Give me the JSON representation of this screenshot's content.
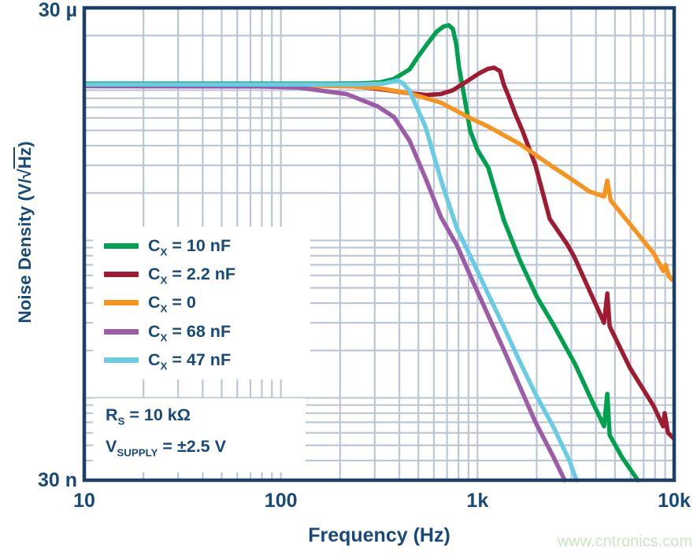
{
  "figure": {
    "watermark": "www.cntronics.com",
    "colors": {
      "text": "#17497A",
      "frame": "#1B3F66",
      "grid": "#BBC7D6",
      "watermark": "#CBE7C4",
      "background": "#FFFFFF"
    }
  },
  "axes": {
    "x": {
      "title": "Frequency (Hz)",
      "ticks": [
        "10",
        "100",
        "1k",
        "10k"
      ],
      "tick_top_value": "30 µ",
      "tick_bottom_value": "30 n"
    },
    "y": {
      "title_prefix": "Noise Density (V/",
      "title_sqrt": "√",
      "title_overline": "Hz",
      "title_suffix": ")",
      "tick_top": "30 µ",
      "tick_bottom": "30 n"
    }
  },
  "legend": {
    "items": [
      {
        "main": "C",
        "sub": "X",
        "rest": " = 10 nF"
      },
      {
        "main": "C",
        "sub": "X",
        "rest": " = 2.2 nF"
      },
      {
        "main": "C",
        "sub": "X",
        "rest": " = 0"
      },
      {
        "main": "C",
        "sub": "X",
        "rest": " = 68 nF"
      },
      {
        "main": "C",
        "sub": "X",
        "rest": " = 47 nF"
      }
    ]
  },
  "annotation": {
    "lines": [
      {
        "main": "R",
        "sub": "S",
        "rest": " = 10 kΩ"
      },
      {
        "main": "V",
        "sub": "SUPPLY",
        "rest": " = ±2.5 V"
      }
    ]
  },
  "chart_data": {
    "type": "line",
    "xscale": "log",
    "yscale": "log",
    "xlabel": "Frequency (Hz)",
    "ylabel": "Noise Density (V/√Hz)",
    "xlim": [
      10,
      10000
    ],
    "ylim": [
      3e-08,
      3e-05
    ],
    "x_ticks": [
      10,
      100,
      1000,
      10000
    ],
    "y_tick_labels": [
      "30 n",
      "30 µ"
    ],
    "grid": true,
    "legend_position": "middle-left",
    "flat_noise_level": 9.8e-06,
    "series": [
      {
        "name": "Cx = 10 nF",
        "color": "#00A14E",
        "points": [
          [
            10,
            9.9e-06
          ],
          [
            100,
            9.9e-06
          ],
          [
            180,
            9.9e-06
          ],
          [
            260,
            9.95e-06
          ],
          [
            320,
            1.01e-05
          ],
          [
            375,
            1.06e-05
          ],
          [
            451,
            1.22e-05
          ],
          [
            494,
            1.45e-05
          ],
          [
            560,
            1.8e-05
          ],
          [
            620,
            2.12e-05
          ],
          [
            670,
            2.28e-05
          ],
          [
            714,
            2.33e-05
          ],
          [
            750,
            2.2e-05
          ],
          [
            780,
            1.75e-05
          ],
          [
            805,
            1.26e-05
          ],
          [
            859,
            8e-06
          ],
          [
            917,
            5e-06
          ],
          [
            1000,
            3.75e-06
          ],
          [
            1133,
            2.9e-06
          ],
          [
            1363,
            1.34e-06
          ],
          [
            1640,
            7.5e-07
          ],
          [
            2000,
            4.4e-07
          ],
          [
            2436,
            2.9e-07
          ],
          [
            3125,
            1.65e-07
          ],
          [
            3830,
            9.5e-08
          ],
          [
            4400,
            6.6e-08
          ],
          [
            4570,
            1.06e-07
          ],
          [
            4700,
            5.8e-08
          ],
          [
            5430,
            4.2e-08
          ],
          [
            6530,
            3e-08
          ]
        ]
      },
      {
        "name": "Cx = 2.2 nF",
        "color": "#9E1B32",
        "points": [
          [
            10,
            9.7e-06
          ],
          [
            150,
            9.65e-06
          ],
          [
            250,
            9.5e-06
          ],
          [
            350,
            9e-06
          ],
          [
            451,
            8.6e-06
          ],
          [
            550,
            8.4e-06
          ],
          [
            650,
            8.5e-06
          ],
          [
            750,
            9e-06
          ],
          [
            857,
            1e-05
          ],
          [
            1030,
            1.16e-05
          ],
          [
            1130,
            1.23e-05
          ],
          [
            1215,
            1.25e-05
          ],
          [
            1300,
            1.19e-05
          ],
          [
            1363,
            9.7e-06
          ],
          [
            1430,
            8.4e-06
          ],
          [
            1560,
            6.3e-06
          ],
          [
            1690,
            5e-06
          ],
          [
            1970,
            3e-06
          ],
          [
            2330,
            1.37e-06
          ],
          [
            2850,
            9.5e-07
          ],
          [
            3100,
            7.9e-07
          ],
          [
            3770,
            4.6e-07
          ],
          [
            4400,
            3e-07
          ],
          [
            4570,
            4.6e-07
          ],
          [
            4700,
            2.85e-07
          ],
          [
            5960,
            1.55e-07
          ],
          [
            7850,
            8.9e-08
          ],
          [
            8790,
            6.6e-08
          ],
          [
            8950,
            8e-08
          ],
          [
            9300,
            6e-08
          ],
          [
            10000,
            5.5e-08
          ]
        ]
      },
      {
        "name": "Cx = 0",
        "color": "#F7941E",
        "points": [
          [
            10,
            9.65e-06
          ],
          [
            150,
            9.6e-06
          ],
          [
            216,
            9.55e-06
          ],
          [
            310,
            9.3e-06
          ],
          [
            451,
            8.6e-06
          ],
          [
            651,
            7.5e-06
          ],
          [
            940,
            5.9e-06
          ],
          [
            1130,
            5.3e-06
          ],
          [
            1640,
            4.1e-06
          ],
          [
            2350,
            3e-06
          ],
          [
            3000,
            2.45e-06
          ],
          [
            3700,
            2.05e-06
          ],
          [
            4400,
            1.9e-06
          ],
          [
            4570,
            2.4e-06
          ],
          [
            4750,
            1.8e-06
          ],
          [
            5960,
            1.27e-06
          ],
          [
            7850,
            8.3e-07
          ],
          [
            8800,
            6.4e-07
          ],
          [
            9050,
            7e-07
          ],
          [
            9400,
            5.9e-07
          ],
          [
            10000,
            5.5e-07
          ]
        ]
      },
      {
        "name": "Cx = 68 nF",
        "color": "#9C5CA8",
        "points": [
          [
            10,
            9.55e-06
          ],
          [
            80,
            9.5e-06
          ],
          [
            124,
            9.35e-06
          ],
          [
            216,
            8.5e-06
          ],
          [
            311,
            7.1e-06
          ],
          [
            375,
            6.1e-06
          ],
          [
            451,
            4.3e-06
          ],
          [
            543,
            2.5e-06
          ],
          [
            653,
            1.4e-06
          ],
          [
            786,
            9.3e-07
          ],
          [
            946,
            5.5e-07
          ],
          [
            1139,
            3.3e-07
          ],
          [
            1365,
            2e-07
          ],
          [
            1640,
            1.18e-07
          ],
          [
            1970,
            7e-08
          ],
          [
            2436,
            4.2e-08
          ],
          [
            2775,
            3e-08
          ]
        ]
      },
      {
        "name": "Cx = 47 nF",
        "color": "#68CDE4",
        "points": [
          [
            10,
            9.8e-06
          ],
          [
            250,
            9.8e-06
          ],
          [
            330,
            9.9e-06
          ],
          [
            365,
            1.015e-05
          ],
          [
            392,
            1.04e-05
          ],
          [
            420,
            9.9e-06
          ],
          [
            451,
            8.9e-06
          ],
          [
            543,
            5.3e-06
          ],
          [
            653,
            2.4e-06
          ],
          [
            786,
            1.19e-06
          ],
          [
            946,
            7.4e-07
          ],
          [
            1139,
            4.5e-07
          ],
          [
            1365,
            2.8e-07
          ],
          [
            1640,
            1.7e-07
          ],
          [
            1970,
            1.06e-07
          ],
          [
            2436,
            6.5e-08
          ],
          [
            2929,
            4e-08
          ],
          [
            3185,
            3e-08
          ]
        ]
      }
    ]
  }
}
